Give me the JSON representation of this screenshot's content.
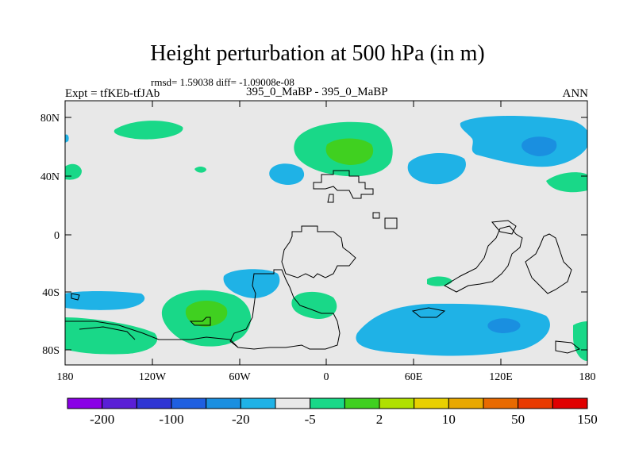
{
  "title": "Height perturbation at 500 hPa (in m)",
  "stats_line": "rmsd= 1.59038 diff= -1.09008e-08",
  "left_label": "Expt = tfKEb-tfJAb",
  "center_label": "395_0_MaBP - 395_0_MaBP",
  "right_label": "ANN",
  "lat_ticks": [
    "80N",
    "40N",
    "0",
    "40S",
    "80S"
  ],
  "lon_ticks": [
    "180",
    "120W",
    "60W",
    "0",
    "60E",
    "120E",
    "180"
  ],
  "colorbar": {
    "colors": [
      "#8a00e6",
      "#5a1fd6",
      "#2f35d4",
      "#1f5fe0",
      "#1a8fe0",
      "#1fb2e6",
      "#e8e8e8",
      "#19d888",
      "#40d020",
      "#b0e000",
      "#e8d000",
      "#e8a800",
      "#e86a00",
      "#e83a00",
      "#e00000"
    ],
    "labels": [
      "-200",
      "-100",
      "-20",
      "-5",
      "2",
      "10",
      "50",
      "150"
    ],
    "label_colors": [
      "#000000",
      "#000000",
      "#000000",
      "#000000",
      "#000000",
      "#000000",
      "#000000",
      "#000000"
    ]
  },
  "chart_data": {
    "type": "heatmap",
    "variable": "Height perturbation at 500 hPa",
    "units": "m",
    "contour_levels": [
      -200,
      -150,
      -100,
      -50,
      -20,
      -10,
      -5,
      -2,
      2,
      5,
      10,
      20,
      50,
      100,
      150,
      200
    ],
    "xlim": [
      -180,
      180
    ],
    "ylim": [
      -90,
      90
    ],
    "background_color": "#e8e8e8"
  }
}
